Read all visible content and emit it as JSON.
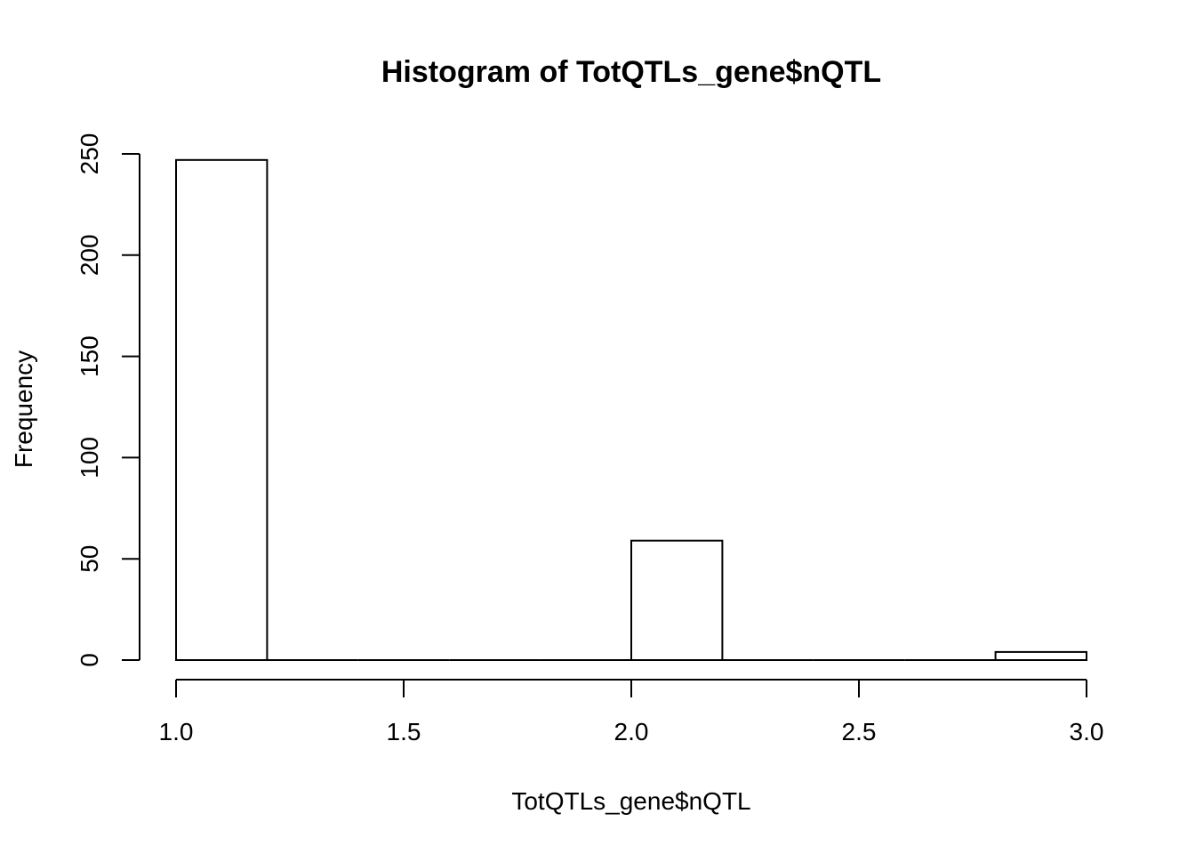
{
  "chart_data": {
    "type": "bar",
    "title": "Histogram of TotQTLs_gene$nQTL",
    "xlabel": "TotQTLs_gene$nQTL",
    "ylabel": "Frequency",
    "xlim": [
      1.0,
      3.0
    ],
    "ylim": [
      0,
      250
    ],
    "bin_edges": [
      1.0,
      1.2,
      1.4,
      1.6,
      1.8,
      2.0,
      2.2,
      2.4,
      2.6,
      2.8,
      3.0
    ],
    "values": [
      247,
      0,
      0,
      0,
      0,
      59,
      0,
      0,
      0,
      4
    ],
    "x_ticks": [
      1.0,
      1.5,
      2.0,
      2.5,
      3.0
    ],
    "x_tick_labels": [
      "1.0",
      "1.5",
      "2.0",
      "2.5",
      "3.0"
    ],
    "y_ticks": [
      0,
      50,
      100,
      150,
      200,
      250
    ],
    "y_tick_labels": [
      "0",
      "50",
      "100",
      "150",
      "200",
      "250"
    ],
    "grid": false,
    "bar_fill": "#ffffff",
    "bar_stroke": "#000000"
  }
}
